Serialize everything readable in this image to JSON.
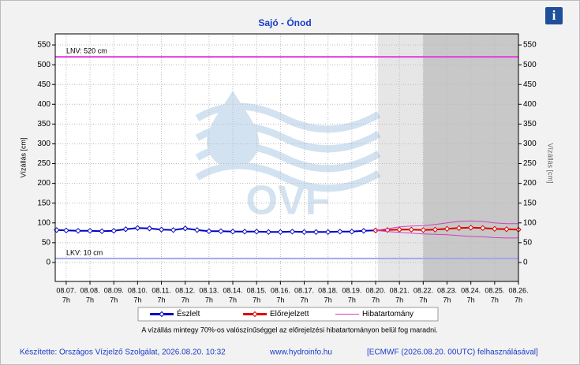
{
  "chart_data": {
    "type": "line",
    "title": "Sajó - Ónod",
    "y_label": "Vízállás [cm]",
    "y2_label": "Vízállás [cm]",
    "watermark": "OVF",
    "xlim": [
      -0.46,
      19
    ],
    "ylim": [
      -48,
      578
    ],
    "yticks": [
      0,
      50,
      100,
      150,
      200,
      250,
      300,
      350,
      400,
      450,
      500,
      550
    ],
    "xticks": [
      {
        "value": 0,
        "label": "08.07."
      },
      {
        "value": 1,
        "label": "08.08."
      },
      {
        "value": 2,
        "label": "08.09."
      },
      {
        "value": 3,
        "label": "08.10."
      },
      {
        "value": 4,
        "label": "08.11."
      },
      {
        "value": 5,
        "label": "08.12."
      },
      {
        "value": 6,
        "label": "08.13."
      },
      {
        "value": 7,
        "label": "08.14."
      },
      {
        "value": 8,
        "label": "08.15."
      },
      {
        "value": 9,
        "label": "08.16."
      },
      {
        "value": 10,
        "label": "08.17."
      },
      {
        "value": 11,
        "label": "08.18."
      },
      {
        "value": 12,
        "label": "08.19."
      },
      {
        "value": 13,
        "label": "08.20."
      },
      {
        "value": 14,
        "label": "08.21."
      },
      {
        "value": 15,
        "label": "08.22."
      },
      {
        "value": 16,
        "label": "08.23."
      },
      {
        "value": 17,
        "label": "08.24."
      },
      {
        "value": 18,
        "label": "08.25."
      },
      {
        "value": 19,
        "label": "08.26."
      }
    ],
    "xtick_time": "7h",
    "grid": true,
    "shaded_regions": [
      {
        "xlim": [
          13.1,
          15
        ],
        "color": "#e6e6e6"
      },
      {
        "xlim": [
          15,
          19
        ],
        "color": "#c8c8c8"
      }
    ],
    "thresholds": [
      {
        "label": "LNV: 520 cm",
        "value": 520,
        "color": "#e040e0"
      },
      {
        "label": "LKV: 10 cm",
        "value": 10,
        "color": "#a0a8f0"
      }
    ],
    "series": [
      {
        "name": "Észlelt",
        "color": "#0000c0",
        "x": [
          -0.4,
          0,
          0.5,
          1,
          1.5,
          2,
          2.5,
          3,
          3.5,
          4,
          4.5,
          5,
          5.5,
          6,
          6.5,
          7,
          7.5,
          8,
          8.5,
          9,
          9.5,
          10,
          10.5,
          11,
          11.5,
          12,
          12.5,
          13
        ],
        "values": [
          82,
          81,
          80,
          80,
          79,
          80,
          84,
          87,
          86,
          83,
          82,
          86,
          82,
          79,
          79,
          78,
          78,
          78,
          77,
          77,
          78,
          77,
          77,
          77,
          78,
          78,
          80,
          81
        ]
      },
      {
        "name": "Előrejelzett",
        "color": "#e00000",
        "x": [
          13,
          13.5,
          14,
          14.5,
          15,
          15.5,
          16,
          16.5,
          17,
          17.5,
          18,
          18.5,
          19
        ],
        "values": [
          81,
          82,
          83,
          83,
          82,
          83,
          85,
          87,
          88,
          87,
          85,
          84,
          83
        ]
      },
      {
        "name": "Hibatartomány",
        "color": "#d040c0",
        "x": [
          13,
          13.5,
          14,
          14.5,
          15,
          15.5,
          16,
          16.5,
          17,
          17.5,
          18,
          18.5,
          19
        ],
        "values": [
          81,
          85,
          90,
          92,
          93,
          96,
          100,
          104,
          105,
          104,
          100,
          98,
          98
        ],
        "lower": [
          81,
          78,
          76,
          74,
          72,
          71,
          70,
          68,
          66,
          65,
          63,
          62,
          62
        ]
      }
    ],
    "note": "A vízállás mintegy 70%-os valószínűséggel az előrejelzési hibatartományon belül fog maradni."
  },
  "footer": {
    "author": "Készítette: Országos Vízjelző Szolgálat, 2026.08.20. 10:32",
    "url": "www.hydroinfo.hu",
    "source": "[ECMWF (2026.08.20. 00UTC) felhasználásával]"
  },
  "info_icon": "i"
}
